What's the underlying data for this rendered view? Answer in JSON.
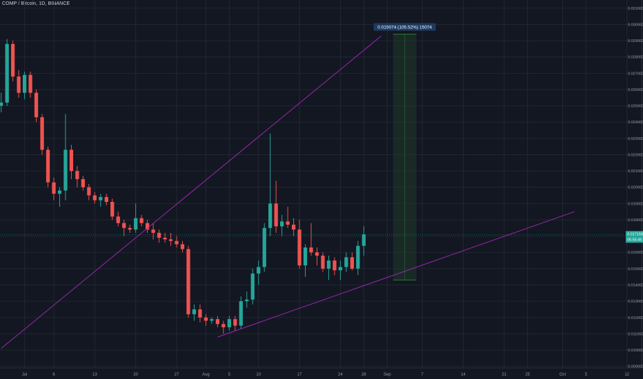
{
  "header": {
    "symbol": "COMP / Bitcoin, 1D, BINANCE"
  },
  "price_badge": {
    "price": "0.017159",
    "countdown": "05:55:45"
  },
  "colors": {
    "background": "#131722",
    "grid": "#232733",
    "up": "#26a69a",
    "down": "#ef5350",
    "trendline": "#9c27b0",
    "measure_fill": "#1f3a2a",
    "measure_line": "#2e7d32",
    "badge": "#26a69a",
    "tag": "#1e3a5f"
  },
  "chart_data": {
    "type": "candlestick",
    "title": "COMP / Bitcoin, 1D, BINANCE",
    "x_ticks": [
      {
        "label": "Jul",
        "day": 0
      },
      {
        "label": "6",
        "day": 5
      },
      {
        "label": "13",
        "day": 12
      },
      {
        "label": "20",
        "day": 19
      },
      {
        "label": "27",
        "day": 26
      },
      {
        "label": "Aug",
        "day": 31
      },
      {
        "label": "5",
        "day": 35
      },
      {
        "label": "10",
        "day": 40
      },
      {
        "label": "17",
        "day": 47
      },
      {
        "label": "24",
        "day": 54
      },
      {
        "label": "28",
        "day": 58
      },
      {
        "label": "Sep",
        "day": 62
      },
      {
        "label": "7",
        "day": 68
      },
      {
        "label": "14",
        "day": 75
      },
      {
        "label": "21",
        "day": 82
      },
      {
        "label": "25",
        "day": 86
      },
      {
        "label": "Oct",
        "day": 92
      },
      {
        "label": "5",
        "day": 96
      },
      {
        "label": "12",
        "day": 103
      }
    ],
    "y_ticks": [
      "0.031000",
      "0.030000",
      "0.029000",
      "0.028000",
      "0.027000",
      "0.026000",
      "0.025000",
      "0.024000",
      "0.023000",
      "0.022000",
      "0.021000",
      "0.020000",
      "0.019000",
      "0.018000",
      "0.017000",
      "0.016000",
      "0.015000",
      "0.014000",
      "0.013000",
      "0.012000",
      "0.011000",
      "0.010000",
      "0.009000"
    ],
    "y_range": [
      0.0089,
      0.0315
    ],
    "x_range": [
      -4.2,
      105.5
    ],
    "grid": true,
    "ohlc": [
      [
        -4,
        0.025,
        0.0258,
        0.0246,
        0.0252
      ],
      [
        -3,
        0.0252,
        0.0291,
        0.025,
        0.0288
      ],
      [
        -2,
        0.0288,
        0.029,
        0.0265,
        0.0268
      ],
      [
        -1,
        0.0268,
        0.0272,
        0.0255,
        0.0258
      ],
      [
        0,
        0.0258,
        0.0271,
        0.0254,
        0.0269
      ],
      [
        1,
        0.0269,
        0.0271,
        0.0255,
        0.0258
      ],
      [
        2,
        0.0258,
        0.026,
        0.024,
        0.0243
      ],
      [
        3,
        0.0243,
        0.0245,
        0.022,
        0.0223
      ],
      [
        4,
        0.0223,
        0.0225,
        0.02,
        0.0203
      ],
      [
        5,
        0.0203,
        0.0206,
        0.0192,
        0.0196
      ],
      [
        6,
        0.0196,
        0.02,
        0.0188,
        0.0198
      ],
      [
        7,
        0.0198,
        0.0245,
        0.0192,
        0.0223
      ],
      [
        8,
        0.0223,
        0.0226,
        0.0205,
        0.021
      ],
      [
        9,
        0.021,
        0.0213,
        0.02,
        0.0205
      ],
      [
        10,
        0.0205,
        0.0207,
        0.0198,
        0.02
      ],
      [
        11,
        0.02,
        0.0202,
        0.0192,
        0.0195
      ],
      [
        12,
        0.0195,
        0.0197,
        0.019,
        0.0192
      ],
      [
        13,
        0.0192,
        0.0196,
        0.0188,
        0.0194
      ],
      [
        14,
        0.0194,
        0.0196,
        0.0189,
        0.0191
      ],
      [
        15,
        0.0191,
        0.0193,
        0.018,
        0.0182
      ],
      [
        16,
        0.0182,
        0.0185,
        0.0176,
        0.0178
      ],
      [
        17,
        0.0178,
        0.018,
        0.017,
        0.0175
      ],
      [
        18,
        0.0175,
        0.0177,
        0.0172,
        0.0174
      ],
      [
        19,
        0.0174,
        0.019,
        0.0172,
        0.0181
      ],
      [
        20,
        0.0181,
        0.0183,
        0.0176,
        0.0178
      ],
      [
        21,
        0.0178,
        0.018,
        0.0172,
        0.0174
      ],
      [
        22,
        0.0174,
        0.0178,
        0.0168,
        0.0172
      ],
      [
        23,
        0.0172,
        0.0174,
        0.0166,
        0.0169
      ],
      [
        24,
        0.0169,
        0.0172,
        0.0166,
        0.0168
      ],
      [
        25,
        0.0168,
        0.0172,
        0.0164,
        0.0167
      ],
      [
        26,
        0.0167,
        0.017,
        0.0163,
        0.0165
      ],
      [
        27,
        0.0165,
        0.0167,
        0.016,
        0.0162
      ],
      [
        28,
        0.0162,
        0.0164,
        0.012,
        0.0122
      ],
      [
        29,
        0.0122,
        0.0128,
        0.0118,
        0.0125
      ],
      [
        30,
        0.0125,
        0.0128,
        0.0117,
        0.012
      ],
      [
        31,
        0.012,
        0.0122,
        0.0115,
        0.0118
      ],
      [
        32,
        0.0118,
        0.012,
        0.0116,
        0.0119
      ],
      [
        33,
        0.0119,
        0.0121,
        0.0114,
        0.0116
      ],
      [
        34,
        0.0116,
        0.0118,
        0.011,
        0.0114
      ],
      [
        35,
        0.0114,
        0.0121,
        0.0112,
        0.0119
      ],
      [
        36,
        0.0119,
        0.0121,
        0.0112,
        0.0115
      ],
      [
        37,
        0.0115,
        0.0133,
        0.0113,
        0.013
      ],
      [
        38,
        0.013,
        0.0136,
        0.0126,
        0.0131
      ],
      [
        39,
        0.0131,
        0.015,
        0.0128,
        0.0147
      ],
      [
        40,
        0.0147,
        0.0155,
        0.014,
        0.0151
      ],
      [
        41,
        0.0151,
        0.0178,
        0.0148,
        0.0175
      ],
      [
        42,
        0.0175,
        0.0233,
        0.017,
        0.019
      ],
      [
        43,
        0.019,
        0.0204,
        0.0172,
        0.0176
      ],
      [
        44,
        0.0176,
        0.0183,
        0.017,
        0.0179
      ],
      [
        45,
        0.0179,
        0.0188,
        0.0175,
        0.0177
      ],
      [
        46,
        0.0177,
        0.0181,
        0.017,
        0.0174
      ],
      [
        47,
        0.0174,
        0.018,
        0.015,
        0.0152
      ],
      [
        48,
        0.0152,
        0.0165,
        0.0145,
        0.0163
      ],
      [
        49,
        0.0163,
        0.0178,
        0.0158,
        0.016
      ],
      [
        50,
        0.016,
        0.0163,
        0.0152,
        0.0158
      ],
      [
        51,
        0.0158,
        0.016,
        0.0148,
        0.015
      ],
      [
        52,
        0.015,
        0.0158,
        0.0143,
        0.0155
      ],
      [
        53,
        0.0155,
        0.0157,
        0.0146,
        0.0149
      ],
      [
        54,
        0.0149,
        0.0155,
        0.0143,
        0.0151
      ],
      [
        55,
        0.0151,
        0.016,
        0.0148,
        0.0157
      ],
      [
        56,
        0.0157,
        0.016,
        0.0149,
        0.015
      ],
      [
        57,
        0.015,
        0.0167,
        0.0146,
        0.0164
      ],
      [
        58,
        0.0164,
        0.0176,
        0.0158,
        0.0171
      ]
    ],
    "trendlines": [
      {
        "from": [
          -4.0,
          0.0101
        ],
        "to": [
          61.0,
          0.0293
        ]
      },
      {
        "from": [
          33.0,
          0.0108
        ],
        "to": [
          94.0,
          0.0185
        ]
      }
    ],
    "measure": {
      "start_day": 63,
      "end_day": 67,
      "low": 0.0143,
      "high": 0.0294,
      "label": "0.015074 (105.52%) 15074"
    }
  }
}
